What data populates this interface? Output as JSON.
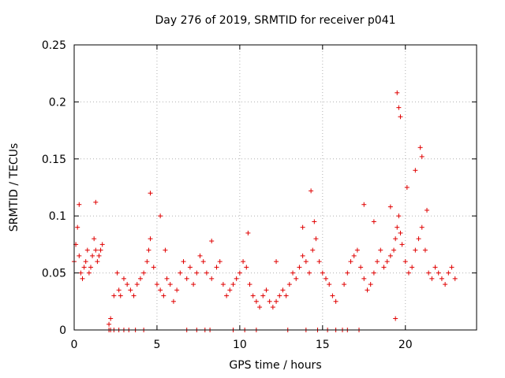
{
  "chart_data": {
    "type": "scatter",
    "title": "Day 276 of 2019, SRMTID for receiver p041",
    "xlabel": "GPS time / hours",
    "ylabel": "SRMTID / TECUs",
    "xlim": [
      0,
      24.3
    ],
    "ylim": [
      0,
      0.25
    ],
    "xticks": [
      0,
      5,
      10,
      15,
      20
    ],
    "yticks": [
      0,
      0.05,
      0.1,
      0.15,
      0.2,
      0.25
    ],
    "xtick_labels": [
      "0",
      "5",
      "10",
      "15",
      "20"
    ],
    "ytick_labels": [
      "0",
      "0.05",
      "0.1",
      "0.15",
      "0.2",
      "0.25"
    ],
    "grid": true,
    "marker": "+",
    "series": [
      {
        "name": "SRMTID",
        "color": "#e00000",
        "x": [
          0.0,
          0.1,
          0.2,
          0.3,
          0.4,
          0.5,
          0.6,
          0.7,
          0.8,
          0.9,
          1.0,
          1.1,
          1.2,
          1.3,
          1.4,
          1.5,
          1.6,
          1.7,
          2.1,
          2.2,
          2.4,
          2.6,
          2.7,
          2.8,
          3.0,
          3.2,
          3.4,
          3.6,
          3.8,
          4.0,
          4.2,
          4.4,
          4.5,
          4.6,
          4.8,
          5.0,
          5.2,
          5.4,
          5.6,
          5.8,
          6.0,
          6.2,
          6.4,
          6.6,
          6.8,
          7.0,
          7.2,
          7.4,
          7.6,
          7.8,
          8.0,
          8.3,
          8.6,
          8.8,
          9.0,
          9.2,
          9.4,
          9.6,
          9.8,
          10.0,
          10.2,
          10.4,
          10.6,
          10.8,
          11.0,
          11.2,
          11.4,
          11.6,
          11.8,
          12.0,
          12.2,
          12.4,
          12.6,
          12.8,
          13.0,
          13.2,
          13.4,
          13.6,
          13.8,
          14.0,
          14.2,
          14.4,
          14.6,
          14.8,
          15.0,
          15.2,
          15.4,
          15.6,
          15.8,
          16.3,
          16.5,
          16.7,
          16.9,
          17.1,
          17.3,
          17.5,
          17.7,
          17.9,
          18.1,
          18.3,
          18.5,
          18.7,
          18.9,
          19.1,
          19.3,
          19.4,
          19.5,
          19.6,
          19.7,
          19.8,
          20.0,
          20.2,
          20.4,
          20.6,
          20.8,
          21.0,
          21.2,
          21.4,
          21.6,
          21.8,
          22.0,
          22.2,
          22.4,
          22.6,
          22.8,
          23.0,
          0.3,
          1.3,
          4.6,
          5.2,
          8.3,
          10.5,
          13.8,
          14.3,
          14.5,
          17.5,
          18.1,
          19.1,
          19.5,
          19.6,
          19.7,
          20.1,
          20.6,
          20.9,
          21.0,
          21.3,
          5.5,
          12.2,
          2.1,
          2.2,
          2.4,
          2.7,
          3.0,
          3.3,
          3.7,
          4.2,
          6.8,
          7.4,
          7.9,
          8.2,
          9.6,
          10.3,
          11.0,
          12.9,
          14.0,
          14.7,
          15.3,
          15.8,
          16.2,
          16.5,
          17.2,
          19.4
        ],
        "y": [
          0.06,
          0.075,
          0.09,
          0.065,
          0.05,
          0.045,
          0.055,
          0.06,
          0.07,
          0.05,
          0.055,
          0.065,
          0.08,
          0.07,
          0.06,
          0.065,
          0.07,
          0.075,
          0.005,
          0.01,
          0.03,
          0.05,
          0.035,
          0.03,
          0.045,
          0.04,
          0.035,
          0.03,
          0.04,
          0.045,
          0.05,
          0.06,
          0.07,
          0.08,
          0.055,
          0.04,
          0.035,
          0.03,
          0.045,
          0.04,
          0.025,
          0.035,
          0.05,
          0.06,
          0.045,
          0.055,
          0.04,
          0.05,
          0.065,
          0.06,
          0.05,
          0.045,
          0.055,
          0.06,
          0.04,
          0.03,
          0.035,
          0.04,
          0.045,
          0.05,
          0.06,
          0.055,
          0.04,
          0.03,
          0.025,
          0.02,
          0.03,
          0.035,
          0.025,
          0.02,
          0.025,
          0.03,
          0.035,
          0.03,
          0.04,
          0.05,
          0.045,
          0.055,
          0.065,
          0.06,
          0.05,
          0.07,
          0.08,
          0.06,
          0.05,
          0.045,
          0.04,
          0.03,
          0.025,
          0.04,
          0.05,
          0.06,
          0.065,
          0.07,
          0.055,
          0.045,
          0.035,
          0.04,
          0.05,
          0.06,
          0.07,
          0.055,
          0.06,
          0.065,
          0.07,
          0.08,
          0.09,
          0.1,
          0.085,
          0.075,
          0.06,
          0.05,
          0.055,
          0.07,
          0.08,
          0.09,
          0.07,
          0.05,
          0.045,
          0.055,
          0.05,
          0.045,
          0.04,
          0.05,
          0.055,
          0.045,
          0.11,
          0.112,
          0.12,
          0.1,
          0.078,
          0.085,
          0.09,
          0.122,
          0.095,
          0.11,
          0.095,
          0.108,
          0.208,
          0.195,
          0.187,
          0.125,
          0.14,
          0.16,
          0.152,
          0.105,
          0.07,
          0.06,
          0.0,
          0.0,
          0.0,
          0.0,
          0.0,
          0.0,
          0.0,
          0.0,
          0.0,
          0.0,
          0.0,
          0.0,
          0.0,
          0.0,
          0.0,
          0.0,
          0.0,
          0.0,
          0.0,
          0.0,
          0.0,
          0.0,
          0.0,
          0.01
        ]
      }
    ]
  }
}
